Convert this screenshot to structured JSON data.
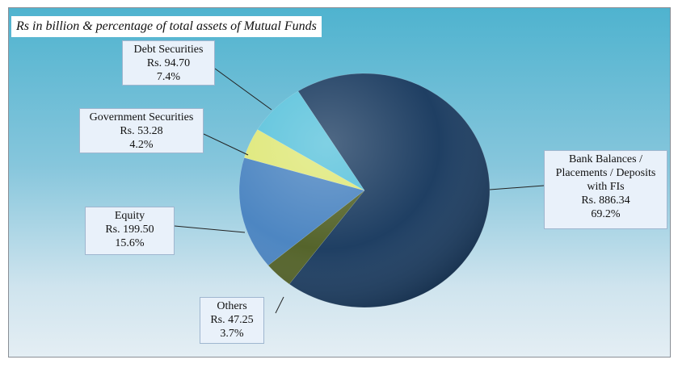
{
  "chart_data": {
    "type": "pie",
    "title": "Rs in billion & percentage of total assets of Mutual Funds",
    "slices": [
      {
        "key": "bank",
        "lines": [
          "Bank Balances /",
          "Placements / Deposits",
          "with FIs"
        ],
        "amount": "Rs.  886.34",
        "percent": "69.2%",
        "value": 69.2,
        "color": "#1f3f63"
      },
      {
        "key": "others",
        "lines": [
          "Others"
        ],
        "amount": "Rs.  47.25",
        "percent": "3.7%",
        "value": 3.7,
        "color": "#55642b"
      },
      {
        "key": "equity",
        "lines": [
          "Equity"
        ],
        "amount": "Rs.  199.50",
        "percent": "15.6%",
        "value": 15.6,
        "color": "#4d86c2"
      },
      {
        "key": "govt",
        "lines": [
          "Government Securities"
        ],
        "amount": "Rs.  53.28",
        "percent": "4.2%",
        "value": 4.2,
        "color": "#dfe87a"
      },
      {
        "key": "debt",
        "lines": [
          "Debt Securities"
        ],
        "amount": "Rs.  94.70",
        "percent": "7.4%",
        "value": 7.4,
        "color": "#5cc3dc"
      }
    ]
  }
}
